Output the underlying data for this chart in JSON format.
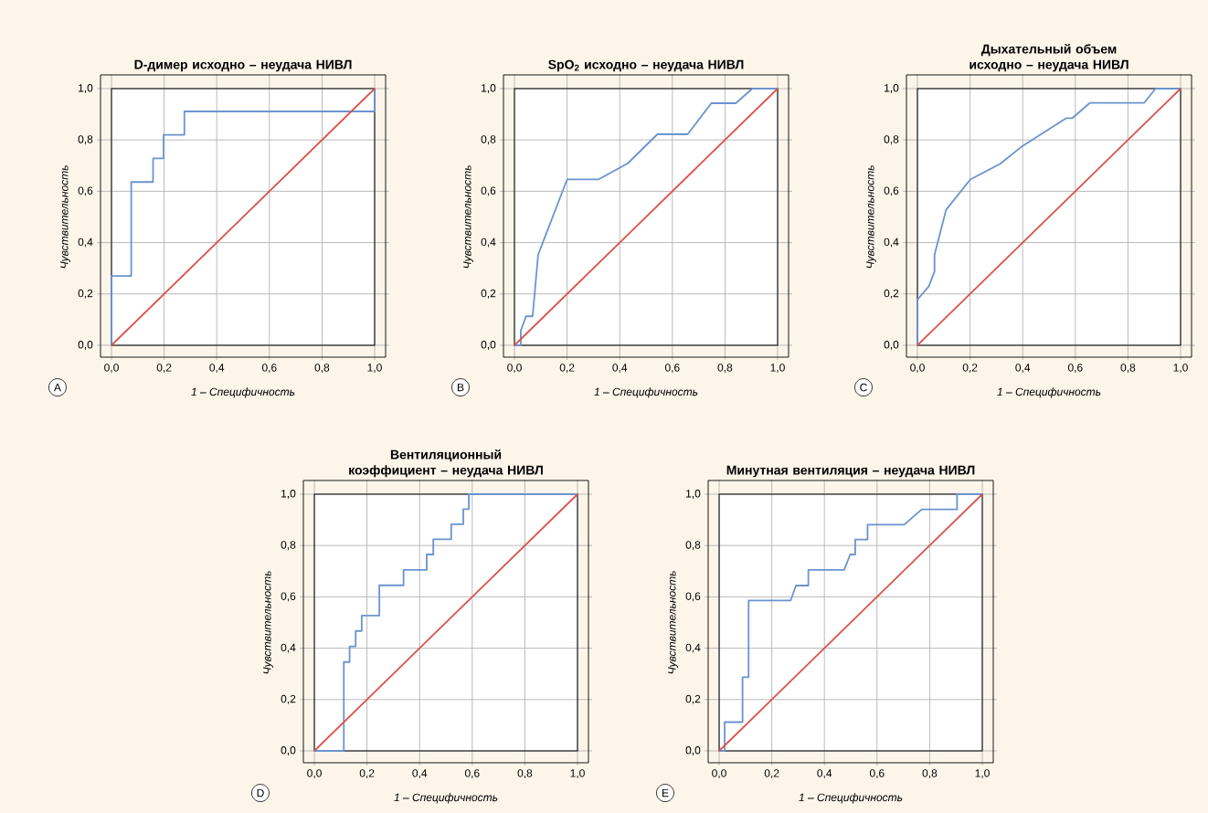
{
  "chart_data": [
    {
      "type": "line",
      "title": "D-димер исходно – неудача НИВЛ",
      "xlabel": "1 – Специфичность",
      "ylabel": "Чувствительность",
      "annotations": [
        "A"
      ],
      "grid": true,
      "xlim": [
        0,
        1
      ],
      "ylim": [
        0,
        1
      ],
      "xticks": [
        {
          "value": 0,
          "label": "0,0"
        },
        {
          "value": 0.2,
          "label": "0,2"
        },
        {
          "value": 0.4,
          "label": "0,4"
        },
        {
          "value": 0.6,
          "label": "0,6"
        },
        {
          "value": 0.8,
          "label": "0,8"
        },
        {
          "value": 1,
          "label": "1,0"
        }
      ],
      "yticks": [
        {
          "value": 0,
          "label": "0,0"
        },
        {
          "value": 0.2,
          "label": "0,2"
        },
        {
          "value": 0.4,
          "label": "0,4"
        },
        {
          "value": 0.6,
          "label": "0,6"
        },
        {
          "value": 0.8,
          "label": "0,8"
        },
        {
          "value": 1,
          "label": "1,0"
        }
      ],
      "series": [
        {
          "color": "#6a93cf",
          "x": [
            0,
            0,
            0.075,
            0.075,
            0.158,
            0.158,
            0.198,
            0.198,
            0.277,
            0.277,
            1,
            1
          ],
          "values": [
            0,
            0.27,
            0.27,
            0.636,
            0.636,
            0.728,
            0.728,
            0.82,
            0.82,
            0.911,
            0.911,
            1
          ]
        },
        {
          "color": "#d9544a",
          "x": [
            0,
            1
          ],
          "values": [
            0,
            1
          ]
        }
      ]
    },
    {
      "type": "line",
      "title": "SpO$_{2}$ исходно – неудача НИВЛ",
      "xlabel": "1 – Специфичность",
      "ylabel": "Чувствительность",
      "annotations": [
        "B"
      ],
      "grid": true,
      "xlim": [
        0,
        1
      ],
      "ylim": [
        0,
        1
      ],
      "xticks": [
        {
          "value": 0,
          "label": "0,0"
        },
        {
          "value": 0.2,
          "label": "0,2"
        },
        {
          "value": 0.4,
          "label": "0,4"
        },
        {
          "value": 0.6,
          "label": "0,6"
        },
        {
          "value": 0.8,
          "label": "0,8"
        },
        {
          "value": 1,
          "label": "1,0"
        }
      ],
      "yticks": [
        {
          "value": 0,
          "label": "0,0"
        },
        {
          "value": 0.2,
          "label": "0,2"
        },
        {
          "value": 0.4,
          "label": "0,4"
        },
        {
          "value": 0.6,
          "label": "0,6"
        },
        {
          "value": 0.8,
          "label": "0,8"
        },
        {
          "value": 1,
          "label": "1,0"
        }
      ],
      "series": [
        {
          "color": "#6a93cf",
          "x": [
            0,
            0.024,
            0.024,
            0.044,
            0.069,
            0.09,
            0.2,
            0.319,
            0.431,
            0.543,
            0.658,
            0.748,
            0.841,
            0.904,
            1
          ],
          "values": [
            0,
            0,
            0.057,
            0.113,
            0.113,
            0.353,
            0.646,
            0.646,
            0.709,
            0.822,
            0.822,
            0.943,
            0.943,
            1,
            1
          ]
        },
        {
          "color": "#d9544a",
          "x": [
            0,
            1
          ],
          "values": [
            0,
            1
          ]
        }
      ]
    },
    {
      "type": "line",
      "title": "Дыхательный объем исходно – неудача НИВЛ",
      "xlabel": "1 – Специфичность",
      "ylabel": "Чувствительность",
      "annotations": [
        "C"
      ],
      "grid": true,
      "xlim": [
        0,
        1
      ],
      "ylim": [
        0,
        1
      ],
      "xticks": [
        {
          "value": 0,
          "label": "0,0"
        },
        {
          "value": 0.2,
          "label": "0,2"
        },
        {
          "value": 0.4,
          "label": "0,4"
        },
        {
          "value": 0.6,
          "label": "0,6"
        },
        {
          "value": 0.8,
          "label": "0,8"
        },
        {
          "value": 1,
          "label": "1,0"
        }
      ],
      "yticks": [
        {
          "value": 0,
          "label": "0,0"
        },
        {
          "value": 0.2,
          "label": "0,2"
        },
        {
          "value": 0.4,
          "label": "0,4"
        },
        {
          "value": 0.6,
          "label": "0,6"
        },
        {
          "value": 0.8,
          "label": "0,8"
        },
        {
          "value": 1,
          "label": "1,0"
        }
      ],
      "series": [
        {
          "color": "#6a93cf",
          "x": [
            0,
            0,
            0.043,
            0.065,
            0.065,
            0.109,
            0.201,
            0.315,
            0.392,
            0.566,
            0.589,
            0.655,
            0.861,
            0.905,
            1
          ],
          "values": [
            0,
            0.178,
            0.229,
            0.288,
            0.353,
            0.528,
            0.646,
            0.707,
            0.771,
            0.885,
            0.885,
            0.944,
            0.944,
            1,
            1
          ]
        },
        {
          "color": "#d9544a",
          "x": [
            0,
            1
          ],
          "values": [
            0,
            1
          ]
        }
      ]
    },
    {
      "type": "line",
      "title": "Вентиляционный коэффициент – неудача НИВЛ",
      "xlabel": "1 – Специфичность",
      "ylabel": "Чувствительность",
      "annotations": [
        "D"
      ],
      "grid": true,
      "xlim": [
        0,
        1
      ],
      "ylim": [
        0,
        1
      ],
      "xticks": [
        {
          "value": 0,
          "label": "0,0"
        },
        {
          "value": 0.2,
          "label": "0,2"
        },
        {
          "value": 0.4,
          "label": "0,4"
        },
        {
          "value": 0.6,
          "label": "0,6"
        },
        {
          "value": 0.8,
          "label": "0,8"
        },
        {
          "value": 1,
          "label": "1,0"
        }
      ],
      "yticks": [
        {
          "value": 0,
          "label": "0,0"
        },
        {
          "value": 0.2,
          "label": "0,2"
        },
        {
          "value": 0.4,
          "label": "0,4"
        },
        {
          "value": 0.6,
          "label": "0,6"
        },
        {
          "value": 0.8,
          "label": "0,8"
        },
        {
          "value": 1,
          "label": "1,0"
        }
      ],
      "series": [
        {
          "color": "#6a93cf",
          "x": [
            0,
            0.112,
            0.112,
            0.134,
            0.134,
            0.157,
            0.157,
            0.18,
            0.18,
            0.247,
            0.247,
            0.339,
            0.339,
            0.427,
            0.427,
            0.452,
            0.452,
            0.52,
            0.52,
            0.566,
            0.566,
            0.587,
            0.587,
            1
          ],
          "values": [
            0,
            0,
            0.346,
            0.346,
            0.407,
            0.407,
            0.467,
            0.467,
            0.527,
            0.527,
            0.645,
            0.645,
            0.705,
            0.705,
            0.765,
            0.765,
            0.824,
            0.824,
            0.883,
            0.883,
            0.942,
            0.942,
            1,
            1
          ]
        },
        {
          "color": "#d9544a",
          "x": [
            0,
            1
          ],
          "values": [
            0,
            1
          ]
        }
      ]
    },
    {
      "type": "line",
      "title": "Минутная вентиляция – неудача НИВЛ",
      "xlabel": "1 – Специфичность",
      "ylabel": "Чувствительность",
      "annotations": [
        "E"
      ],
      "grid": true,
      "xlim": [
        0,
        1
      ],
      "ylim": [
        0,
        1
      ],
      "xticks": [
        {
          "value": 0,
          "label": "0,0"
        },
        {
          "value": 0.2,
          "label": "0,2"
        },
        {
          "value": 0.4,
          "label": "0,4"
        },
        {
          "value": 0.6,
          "label": "0,6"
        },
        {
          "value": 0.8,
          "label": "0,8"
        },
        {
          "value": 1,
          "label": "1,0"
        }
      ],
      "yticks": [
        {
          "value": 0,
          "label": "0,0"
        },
        {
          "value": 0.2,
          "label": "0,2"
        },
        {
          "value": 0.4,
          "label": "0,4"
        },
        {
          "value": 0.6,
          "label": "0,6"
        },
        {
          "value": 0.8,
          "label": "0,8"
        },
        {
          "value": 1,
          "label": "1,0"
        }
      ],
      "series": [
        {
          "color": "#6a93cf",
          "x": [
            0,
            0.021,
            0.021,
            0.089,
            0.089,
            0.112,
            0.112,
            0.272,
            0.292,
            0.339,
            0.339,
            0.475,
            0.498,
            0.517,
            0.517,
            0.564,
            0.564,
            0.703,
            0.77,
            0.904,
            0.904,
            1
          ],
          "values": [
            0,
            0,
            0.112,
            0.112,
            0.287,
            0.287,
            0.586,
            0.586,
            0.644,
            0.644,
            0.705,
            0.705,
            0.765,
            0.765,
            0.823,
            0.823,
            0.881,
            0.881,
            0.941,
            0.941,
            1,
            1
          ]
        },
        {
          "color": "#d9544a",
          "x": [
            0,
            1
          ],
          "values": [
            0,
            1
          ]
        }
      ]
    }
  ]
}
